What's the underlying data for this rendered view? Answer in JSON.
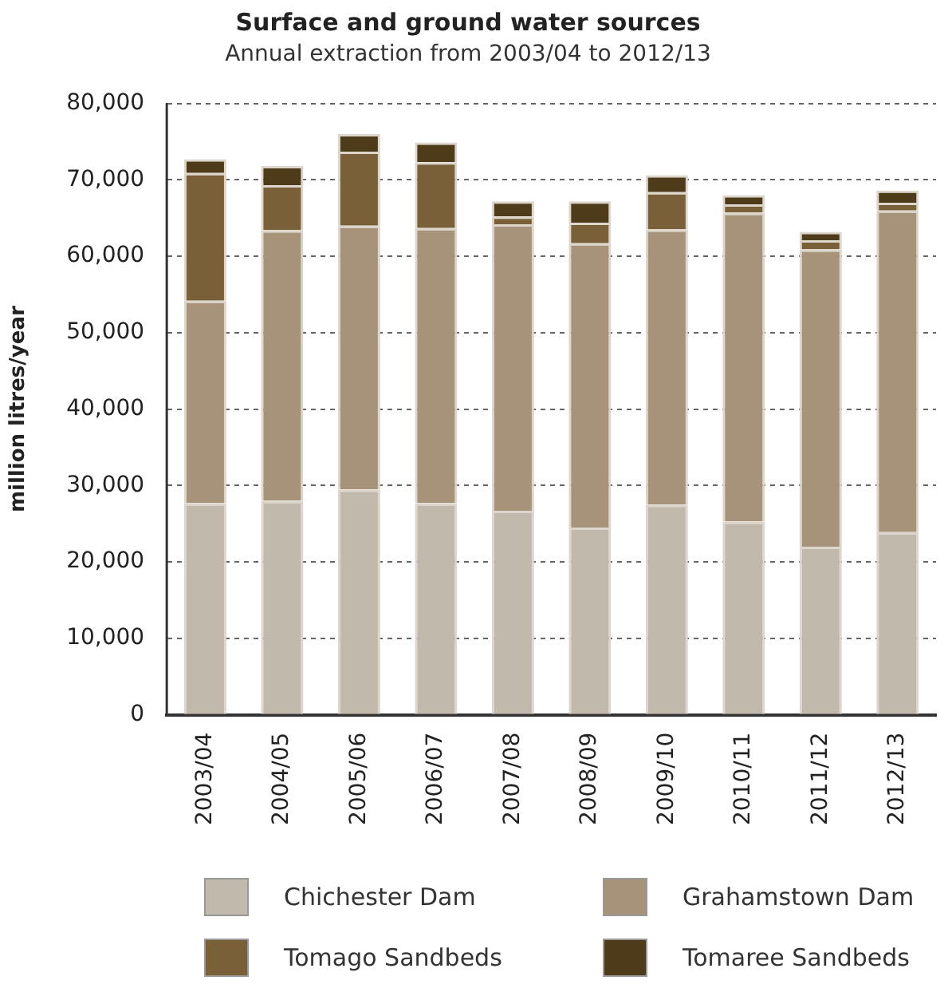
{
  "chart_data": {
    "type": "bar",
    "title": "Surface and ground water sources",
    "subtitle": "Annual extraction from 2003/04 to 2012/13",
    "ylabel": "million litres/year",
    "categories": [
      "2003/04",
      "2004/05",
      "2005/06",
      "2006/07",
      "2007/08",
      "2008/09",
      "2009/10",
      "2010/11",
      "2011/12",
      "2012/13"
    ],
    "stacked": true,
    "ylim": [
      0,
      80000
    ],
    "yticks": [
      {
        "value": 0,
        "label": "0"
      },
      {
        "value": 10000,
        "label": "10,000"
      },
      {
        "value": 20000,
        "label": "20,000"
      },
      {
        "value": 30000,
        "label": "30,000"
      },
      {
        "value": 40000,
        "label": "40,000"
      },
      {
        "value": 50000,
        "label": "50,000"
      },
      {
        "value": 60000,
        "label": "60,000"
      },
      {
        "value": 70000,
        "label": "70,000"
      },
      {
        "value": 80000,
        "label": "80,000"
      }
    ],
    "grid": "y",
    "legend": "bottom",
    "series": [
      {
        "name": "Chichester Dam",
        "color": "#c2b9ad",
        "values": [
          27700,
          28000,
          29500,
          27700,
          26700,
          24500,
          27500,
          25300,
          22000,
          23900
        ]
      },
      {
        "name": "Grahamstown Dam",
        "color": "#a6937a",
        "values": [
          26500,
          35400,
          34500,
          36000,
          37500,
          37200,
          36000,
          40400,
          38900,
          42100
        ]
      },
      {
        "name": "Tomago Sandbeds",
        "color": "#7a6038",
        "values": [
          16700,
          5900,
          9700,
          8600,
          1000,
          2700,
          4900,
          1100,
          1200,
          1000
        ]
      },
      {
        "name": "Tomaree Sandbeds",
        "color": "#4e3b1a",
        "values": [
          1800,
          2500,
          2300,
          2600,
          2000,
          2800,
          2200,
          1200,
          1100,
          1600
        ]
      }
    ]
  }
}
